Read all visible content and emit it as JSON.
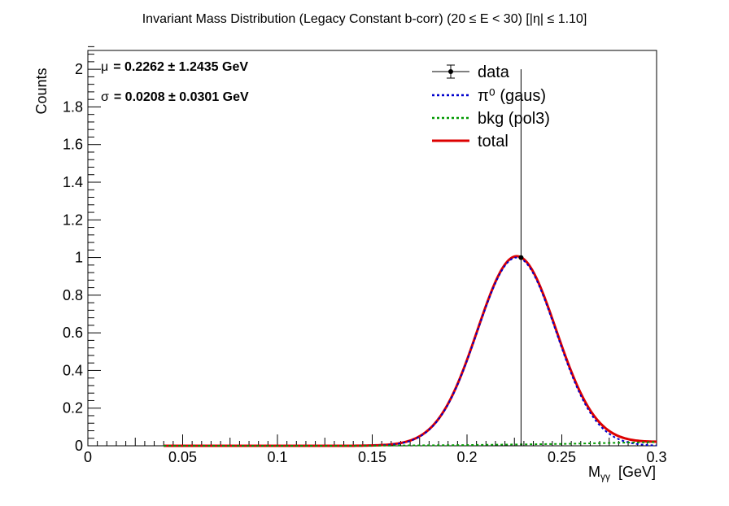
{
  "chart_data": {
    "type": "line",
    "title": "Invariant Mass Distribution (Legacy Constant b-corr)   (20 ≤ E < 30)   [|η| ≤ 1.10]",
    "xlabel": "M",
    "xlabel_sub": "γγ",
    "xlabel_unit": "[GeV]",
    "ylabel": "Counts",
    "xlim": [
      0,
      0.3
    ],
    "ylim": [
      0,
      2.1
    ],
    "x_ticks": [
      0,
      0.05,
      0.1,
      0.15,
      0.2,
      0.25,
      0.3
    ],
    "x_tick_labels": [
      "0",
      "0.05",
      "0.1",
      "0.15",
      "0.2",
      "0.25",
      "0.3"
    ],
    "y_ticks": [
      0,
      0.2,
      0.4,
      0.6,
      0.8,
      1,
      1.2,
      1.4,
      1.6,
      1.8,
      2
    ],
    "y_tick_labels": [
      "0",
      "0.2",
      "0.4",
      "0.6",
      "0.8",
      "1",
      "1.2",
      "1.4",
      "1.6",
      "1.8",
      "2"
    ],
    "grid": false,
    "stats": {
      "mu": {
        "symbol": "μ",
        "text": "= 0.2262  ± 1.2435 GeV"
      },
      "sigma": {
        "symbol": "σ",
        "text": "= 0.0208  ± 0.0301 GeV"
      }
    },
    "legend": {
      "position": "top-right",
      "entries": [
        "data",
        "π⁰ (gaus)",
        "bkg (pol3)",
        "total"
      ]
    },
    "data_points": [
      {
        "x": 0.2285,
        "y": 1.0,
        "yerr_low": 1.0,
        "yerr_high": 1.0
      }
    ],
    "series": [
      {
        "name": "π⁰ (gaus)",
        "style": "dotted",
        "color": "#0000cc",
        "function": "gaus",
        "amplitude": 1.0,
        "mean": 0.2262,
        "sigma": 0.0208,
        "x_range": [
          0.04,
          0.3
        ]
      },
      {
        "name": "bkg (pol3)",
        "style": "dotted",
        "color": "#009900",
        "function": "pol3",
        "points": [
          {
            "x": 0.04,
            "y": 0.0
          },
          {
            "x": 0.14,
            "y": 0.0
          },
          {
            "x": 0.2,
            "y": 0.004
          },
          {
            "x": 0.25,
            "y": 0.01
          },
          {
            "x": 0.3,
            "y": 0.02
          }
        ]
      },
      {
        "name": "total",
        "style": "solid",
        "color": "#dd0000",
        "function": "gaus+pol3"
      }
    ]
  }
}
